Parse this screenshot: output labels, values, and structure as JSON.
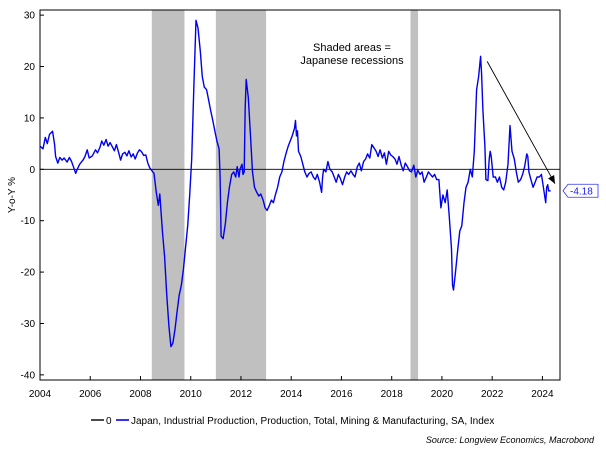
{
  "chart_data": {
    "type": "line",
    "ylabel": "Y-o-Y %",
    "xlim": [
      2004.0,
      2024.7
    ],
    "ylim": [
      -41,
      31
    ],
    "x_ticks": [
      "2004",
      "2006",
      "2008",
      "2010",
      "2012",
      "2014",
      "2016",
      "2018",
      "2020",
      "2022",
      "2024"
    ],
    "y_ticks": [
      "-40",
      "-30",
      "-20",
      "-10",
      "0",
      "10",
      "20",
      "30"
    ],
    "recessions": [
      [
        2008.45,
        2009.75
      ],
      [
        2011.0,
        2013.0
      ],
      [
        2018.75,
        2019.05
      ]
    ],
    "annotation": [
      "Shaded areas =",
      "Japanese recessions"
    ],
    "last_value_label": "-4.18",
    "arrow": {
      "from": [
        2021.8,
        21.0
      ],
      "to": [
        2024.5,
        -2.8
      ]
    },
    "legend": [
      {
        "name": "0",
        "color": "#000000"
      },
      {
        "name": "Japan, Industrial Production, Production, Total, Mining & Manufacturing, SA, Index",
        "color": "#0000ee"
      }
    ],
    "source": "Source: Longview Economics, Macrobond",
    "series": [
      {
        "name": "Japan, Industrial Production, Production, Total, Mining & Manufacturing, SA, Index",
        "color": "#0000ee",
        "points": [
          [
            2004.0,
            4.5
          ],
          [
            2004.12,
            4.0
          ],
          [
            2004.21,
            6.2
          ],
          [
            2004.29,
            5.0
          ],
          [
            2004.38,
            6.8
          ],
          [
            2004.5,
            7.4
          ],
          [
            2004.58,
            4.8
          ],
          [
            2004.62,
            2.5
          ],
          [
            2004.71,
            1.2
          ],
          [
            2004.79,
            2.3
          ],
          [
            2004.88,
            1.8
          ],
          [
            2004.96,
            2.2
          ],
          [
            2005.08,
            1.4
          ],
          [
            2005.17,
            2.3
          ],
          [
            2005.25,
            1.6
          ],
          [
            2005.33,
            0.5
          ],
          [
            2005.42,
            -0.8
          ],
          [
            2005.5,
            0.2
          ],
          [
            2005.58,
            1.0
          ],
          [
            2005.71,
            1.8
          ],
          [
            2005.79,
            2.5
          ],
          [
            2005.88,
            3.8
          ],
          [
            2005.96,
            2.2
          ],
          [
            2006.08,
            2.6
          ],
          [
            2006.21,
            3.8
          ],
          [
            2006.29,
            3.2
          ],
          [
            2006.38,
            4.2
          ],
          [
            2006.46,
            5.5
          ],
          [
            2006.54,
            4.7
          ],
          [
            2006.63,
            5.8
          ],
          [
            2006.71,
            4.5
          ],
          [
            2006.79,
            5.2
          ],
          [
            2006.88,
            4.4
          ],
          [
            2006.96,
            3.6
          ],
          [
            2007.04,
            4.8
          ],
          [
            2007.13,
            3.3
          ],
          [
            2007.21,
            1.8
          ],
          [
            2007.29,
            3.0
          ],
          [
            2007.38,
            3.3
          ],
          [
            2007.46,
            2.6
          ],
          [
            2007.54,
            3.6
          ],
          [
            2007.63,
            2.4
          ],
          [
            2007.71,
            3.0
          ],
          [
            2007.79,
            2.0
          ],
          [
            2007.88,
            3.2
          ],
          [
            2007.96,
            3.8
          ],
          [
            2008.04,
            3.4
          ],
          [
            2008.13,
            2.7
          ],
          [
            2008.21,
            2.8
          ],
          [
            2008.29,
            1.2
          ],
          [
            2008.38,
            0.2
          ],
          [
            2008.46,
            -0.3
          ],
          [
            2008.54,
            -0.8
          ],
          [
            2008.63,
            -4.5
          ],
          [
            2008.71,
            -7.0
          ],
          [
            2008.77,
            -4.8
          ],
          [
            2008.83,
            -9.0
          ],
          [
            2008.88,
            -12.5
          ],
          [
            2008.96,
            -17.0
          ],
          [
            2009.04,
            -24.0
          ],
          [
            2009.13,
            -30.5
          ],
          [
            2009.21,
            -34.5
          ],
          [
            2009.29,
            -33.8
          ],
          [
            2009.38,
            -31.0
          ],
          [
            2009.46,
            -27.5
          ],
          [
            2009.54,
            -24.5
          ],
          [
            2009.63,
            -22.5
          ],
          [
            2009.71,
            -19.5
          ],
          [
            2009.79,
            -15.5
          ],
          [
            2009.88,
            -11.0
          ],
          [
            2009.96,
            -5.0
          ],
          [
            2010.04,
            2.0
          ],
          [
            2010.13,
            17.0
          ],
          [
            2010.21,
            29.0
          ],
          [
            2010.29,
            27.5
          ],
          [
            2010.38,
            23.0
          ],
          [
            2010.46,
            18.0
          ],
          [
            2010.54,
            16.0
          ],
          [
            2010.63,
            15.5
          ],
          [
            2010.71,
            13.5
          ],
          [
            2010.79,
            11.5
          ],
          [
            2010.88,
            9.5
          ],
          [
            2010.96,
            7.5
          ],
          [
            2011.04,
            5.5
          ],
          [
            2011.13,
            4.0
          ],
          [
            2011.17,
            -1.5
          ],
          [
            2011.21,
            -13.0
          ],
          [
            2011.29,
            -13.5
          ],
          [
            2011.38,
            -10.5
          ],
          [
            2011.46,
            -6.5
          ],
          [
            2011.54,
            -3.5
          ],
          [
            2011.63,
            -1.0
          ],
          [
            2011.71,
            -0.5
          ],
          [
            2011.79,
            -1.5
          ],
          [
            2011.85,
            0.5
          ],
          [
            2011.92,
            -1.5
          ],
          [
            2011.96,
            0.0
          ],
          [
            2012.04,
            1.0
          ],
          [
            2012.08,
            -1.0
          ],
          [
            2012.13,
            -0.5
          ],
          [
            2012.17,
            12.0
          ],
          [
            2012.21,
            17.5
          ],
          [
            2012.29,
            14.0
          ],
          [
            2012.38,
            6.5
          ],
          [
            2012.46,
            -0.5
          ],
          [
            2012.54,
            -3.5
          ],
          [
            2012.63,
            -4.5
          ],
          [
            2012.71,
            -5.2
          ],
          [
            2012.79,
            -4.8
          ],
          [
            2012.88,
            -6.0
          ],
          [
            2012.96,
            -7.5
          ],
          [
            2013.04,
            -8.0
          ],
          [
            2013.13,
            -7.0
          ],
          [
            2013.21,
            -6.0
          ],
          [
            2013.29,
            -6.5
          ],
          [
            2013.38,
            -4.8
          ],
          [
            2013.46,
            -3.5
          ],
          [
            2013.54,
            -1.5
          ],
          [
            2013.63,
            -0.5
          ],
          [
            2013.71,
            1.5
          ],
          [
            2013.79,
            3.0
          ],
          [
            2013.88,
            4.5
          ],
          [
            2013.96,
            5.5
          ],
          [
            2014.04,
            6.5
          ],
          [
            2014.13,
            8.0
          ],
          [
            2014.17,
            9.5
          ],
          [
            2014.21,
            6.5
          ],
          [
            2014.25,
            7.5
          ],
          [
            2014.29,
            3.5
          ],
          [
            2014.38,
            2.5
          ],
          [
            2014.46,
            1.0
          ],
          [
            2014.54,
            -0.5
          ],
          [
            2014.63,
            -1.5
          ],
          [
            2014.71,
            -0.8
          ],
          [
            2014.79,
            -0.5
          ],
          [
            2014.88,
            -1.5
          ],
          [
            2014.96,
            -2.0
          ],
          [
            2015.04,
            -1.0
          ],
          [
            2015.13,
            -2.5
          ],
          [
            2015.21,
            -4.5
          ],
          [
            2015.25,
            -1.5
          ],
          [
            2015.29,
            0.0
          ],
          [
            2015.38,
            -0.5
          ],
          [
            2015.46,
            1.5
          ],
          [
            2015.54,
            0.0
          ],
          [
            2015.63,
            -0.5
          ],
          [
            2015.71,
            -1.5
          ],
          [
            2015.79,
            -2.5
          ],
          [
            2015.88,
            -1.0
          ],
          [
            2015.96,
            -1.8
          ],
          [
            2016.04,
            -3.0
          ],
          [
            2016.13,
            -1.5
          ],
          [
            2016.21,
            -0.5
          ],
          [
            2016.29,
            -1.0
          ],
          [
            2016.38,
            -0.3
          ],
          [
            2016.46,
            -1.0
          ],
          [
            2016.54,
            -1.5
          ],
          [
            2016.63,
            0.5
          ],
          [
            2016.71,
            1.2
          ],
          [
            2016.79,
            -0.3
          ],
          [
            2016.88,
            1.5
          ],
          [
            2016.96,
            2.0
          ],
          [
            2017.04,
            3.0
          ],
          [
            2017.13,
            2.2
          ],
          [
            2017.21,
            4.8
          ],
          [
            2017.29,
            4.2
          ],
          [
            2017.38,
            3.5
          ],
          [
            2017.46,
            2.5
          ],
          [
            2017.54,
            3.8
          ],
          [
            2017.63,
            2.2
          ],
          [
            2017.71,
            3.2
          ],
          [
            2017.79,
            1.0
          ],
          [
            2017.88,
            3.5
          ],
          [
            2017.96,
            2.8
          ],
          [
            2018.04,
            2.5
          ],
          [
            2018.13,
            2.0
          ],
          [
            2018.21,
            1.0
          ],
          [
            2018.29,
            2.5
          ],
          [
            2018.38,
            0.8
          ],
          [
            2018.46,
            -0.3
          ],
          [
            2018.54,
            1.2
          ],
          [
            2018.63,
            0.5
          ],
          [
            2018.71,
            -0.3
          ],
          [
            2018.79,
            -0.5
          ],
          [
            2018.88,
            0.8
          ],
          [
            2018.96,
            -1.5
          ],
          [
            2019.04,
            -0.2
          ],
          [
            2019.13,
            -1.0
          ],
          [
            2019.21,
            -0.5
          ],
          [
            2019.29,
            -2.5
          ],
          [
            2019.38,
            -1.5
          ],
          [
            2019.46,
            -0.5
          ],
          [
            2019.54,
            -1.0
          ],
          [
            2019.63,
            -1.5
          ],
          [
            2019.71,
            -1.0
          ],
          [
            2019.79,
            -2.0
          ],
          [
            2019.88,
            -2.0
          ],
          [
            2019.96,
            -7.5
          ],
          [
            2020.04,
            -5.0
          ],
          [
            2020.13,
            -6.5
          ],
          [
            2020.21,
            -4.0
          ],
          [
            2020.29,
            -9.0
          ],
          [
            2020.38,
            -15.5
          ],
          [
            2020.42,
            -22.5
          ],
          [
            2020.46,
            -23.5
          ],
          [
            2020.54,
            -20.0
          ],
          [
            2020.63,
            -15.5
          ],
          [
            2020.71,
            -12.0
          ],
          [
            2020.79,
            -11.0
          ],
          [
            2020.88,
            -6.5
          ],
          [
            2020.96,
            -3.5
          ],
          [
            2021.04,
            -2.5
          ],
          [
            2021.13,
            0.0
          ],
          [
            2021.21,
            -1.5
          ],
          [
            2021.29,
            3.5
          ],
          [
            2021.38,
            15.5
          ],
          [
            2021.46,
            18.0
          ],
          [
            2021.54,
            22.0
          ],
          [
            2021.58,
            18.5
          ],
          [
            2021.63,
            11.5
          ],
          [
            2021.71,
            4.5
          ],
          [
            2021.75,
            -2.0
          ],
          [
            2021.83,
            -2.2
          ],
          [
            2021.88,
            2.0
          ],
          [
            2021.92,
            3.5
          ],
          [
            2021.96,
            2.5
          ],
          [
            2022.04,
            -1.5
          ],
          [
            2022.13,
            -1.5
          ],
          [
            2022.21,
            -2.5
          ],
          [
            2022.29,
            -1.5
          ],
          [
            2022.38,
            -3.5
          ],
          [
            2022.46,
            -4.0
          ],
          [
            2022.54,
            -2.5
          ],
          [
            2022.63,
            1.0
          ],
          [
            2022.71,
            8.5
          ],
          [
            2022.79,
            3.5
          ],
          [
            2022.88,
            2.0
          ],
          [
            2022.96,
            -0.5
          ],
          [
            2023.04,
            -2.5
          ],
          [
            2023.13,
            -2.0
          ],
          [
            2023.21,
            -1.0
          ],
          [
            2023.29,
            0.5
          ],
          [
            2023.38,
            3.0
          ],
          [
            2023.42,
            2.5
          ],
          [
            2023.46,
            -0.5
          ],
          [
            2023.54,
            -2.0
          ],
          [
            2023.63,
            -3.5
          ],
          [
            2023.71,
            -2.5
          ],
          [
            2023.79,
            -1.5
          ],
          [
            2023.88,
            -1.5
          ],
          [
            2023.96,
            -1.0
          ],
          [
            2024.04,
            -3.5
          ],
          [
            2024.13,
            -6.5
          ],
          [
            2024.17,
            -3.5
          ],
          [
            2024.21,
            -3.0
          ],
          [
            2024.25,
            -4.2
          ],
          [
            2024.33,
            -4.18
          ]
        ]
      }
    ]
  }
}
